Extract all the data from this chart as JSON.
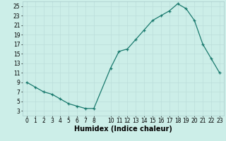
{
  "x": [
    0,
    1,
    2,
    3,
    4,
    5,
    6,
    7,
    8,
    10,
    11,
    12,
    13,
    14,
    15,
    16,
    17,
    18,
    19,
    20,
    21,
    22,
    23
  ],
  "y": [
    9,
    8,
    7,
    6.5,
    5.5,
    4.5,
    4,
    3.5,
    3.5,
    12,
    15.5,
    16,
    18,
    20,
    22,
    23,
    24,
    25.5,
    24.5,
    22,
    17,
    14,
    11
  ],
  "xlabel": "Humidex (Indice chaleur)",
  "xlim": [
    -0.5,
    23.5
  ],
  "ylim": [
    2,
    26
  ],
  "yticks": [
    3,
    5,
    7,
    9,
    11,
    13,
    15,
    17,
    19,
    21,
    23,
    25
  ],
  "xticks": [
    0,
    1,
    2,
    3,
    4,
    5,
    6,
    7,
    8,
    10,
    11,
    12,
    13,
    14,
    15,
    16,
    17,
    18,
    19,
    20,
    21,
    22,
    23
  ],
  "line_color": "#1a7a6e",
  "marker": "+",
  "bg_color": "#cceee8",
  "grid_major_color": "#bbddda",
  "grid_minor_color": "#ccebe8",
  "spine_color": "#aacccc",
  "tick_fontsize": 5.5,
  "xlabel_fontsize": 7.0
}
